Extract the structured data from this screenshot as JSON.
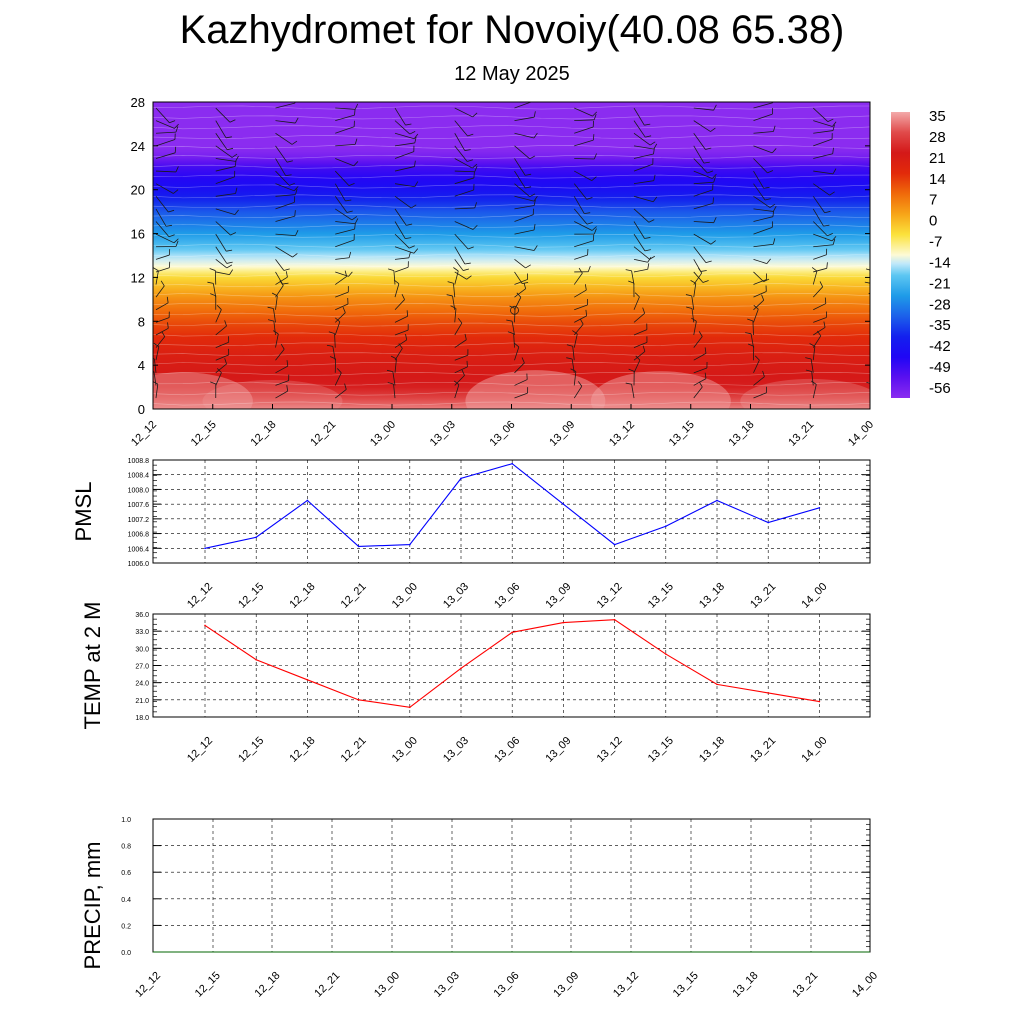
{
  "title": "Kazhydromet for Novoiy(40.08 65.38)",
  "subtitle": "12 May 2025",
  "time_labels": [
    "12_12",
    "12_15",
    "12_18",
    "12_21",
    "13_00",
    "13_03",
    "13_06",
    "13_09",
    "13_12",
    "13_15",
    "13_18",
    "13_21",
    "14_00"
  ],
  "chart_data": [
    {
      "type": "heatmap",
      "title": "",
      "ylabel": "",
      "ylim": [
        0,
        28
      ],
      "y_ticks": [
        "0",
        "4",
        "8",
        "12",
        "16",
        "20",
        "24",
        "28"
      ],
      "x_ticks": [
        "12_12",
        "12_15",
        "12_18",
        "12_21",
        "13_00",
        "13_03",
        "13_06",
        "13_09",
        "13_12",
        "13_15",
        "13_18",
        "13_21",
        "14_00"
      ],
      "colorbar": {
        "labels": [
          "35",
          "28",
          "21",
          "14",
          "7",
          "0",
          "-7",
          "-14",
          "-21",
          "-28",
          "-35",
          "-42",
          "-49",
          "-56"
        ],
        "stops": [
          {
            "v": 35,
            "color": "#f3aaaa"
          },
          {
            "v": 28,
            "color": "#e04a4a"
          },
          {
            "v": 21,
            "color": "#d41818"
          },
          {
            "v": 14,
            "color": "#e22a0a"
          },
          {
            "v": 7,
            "color": "#f06a0a"
          },
          {
            "v": 0,
            "color": "#f7a518"
          },
          {
            "v": -7,
            "color": "#fbe23c"
          },
          {
            "v": -14,
            "color": "#fdfad6"
          },
          {
            "v": -17,
            "color": "#bfe8fa"
          },
          {
            "v": -21,
            "color": "#5cc6f2"
          },
          {
            "v": -28,
            "color": "#1e9be8"
          },
          {
            "v": -35,
            "color": "#1c60ea"
          },
          {
            "v": -42,
            "color": "#1320ee"
          },
          {
            "v": -49,
            "color": "#2006f5"
          },
          {
            "v": -56,
            "color": "#5a10f0"
          },
          {
            "v": -63,
            "color": "#8b2cf0"
          }
        ]
      },
      "temperature_profile": [
        {
          "h": 0,
          "t": 32
        },
        {
          "h": 2,
          "t": 22
        },
        {
          "h": 5,
          "t": 18
        },
        {
          "h": 8,
          "t": 10
        },
        {
          "h": 10,
          "t": 3
        },
        {
          "h": 12,
          "t": -6
        },
        {
          "h": 13,
          "t": -14
        },
        {
          "h": 14,
          "t": -18
        },
        {
          "h": 16,
          "t": -28
        },
        {
          "h": 18,
          "t": -36
        },
        {
          "h": 20,
          "t": -46
        },
        {
          "h": 22,
          "t": -53
        },
        {
          "h": 23,
          "t": -60
        },
        {
          "h": 24,
          "t": -64
        },
        {
          "h": 28,
          "t": -64
        }
      ]
    },
    {
      "type": "line",
      "ylabel": "PMSL",
      "ylim": [
        1006.0,
        1008.8
      ],
      "y_ticks": [
        "1006.0",
        "1006.4",
        "1006.8",
        "1007.2",
        "1007.6",
        "1008.0",
        "1008.4",
        "1008.8"
      ],
      "x": [
        "12_12",
        "12_15",
        "12_18",
        "12_21",
        "13_00",
        "13_03",
        "13_06",
        "13_09",
        "13_12",
        "13_15",
        "13_18",
        "13_21",
        "14_00"
      ],
      "series": [
        {
          "values": [
            1006.4,
            1006.7,
            1007.7,
            1006.45,
            1006.5,
            1008.3,
            1008.7,
            1007.6,
            1006.5,
            1007.0,
            1007.7,
            1007.1,
            1007.5
          ],
          "color": "#0000ff"
        }
      ]
    },
    {
      "type": "line",
      "ylabel": "TEMP at 2 M",
      "ylim": [
        18.0,
        36.0
      ],
      "y_ticks": [
        "18.0",
        "21.0",
        "24.0",
        "27.0",
        "30.0",
        "33.0",
        "36.0"
      ],
      "x": [
        "12_12",
        "12_15",
        "12_18",
        "12_21",
        "13_00",
        "13_03",
        "13_06",
        "13_09",
        "13_12",
        "13_15",
        "13_18",
        "13_21",
        "14_00"
      ],
      "series": [
        {
          "values": [
            34.0,
            28.0,
            24.5,
            21.0,
            19.7,
            26.5,
            32.8,
            34.5,
            35.0,
            29.0,
            23.7,
            22.2,
            20.7
          ],
          "color": "#ff0000"
        }
      ]
    },
    {
      "type": "line",
      "ylabel": "PRECIP, mm",
      "ylim": [
        0.0,
        1.0
      ],
      "y_ticks": [
        "0.0",
        "0.2",
        "0.4",
        "0.6",
        "0.8",
        "1.0"
      ],
      "x": [
        "12_12",
        "12_15",
        "12_18",
        "12_21",
        "13_00",
        "13_03",
        "13_06",
        "13_09",
        "13_12",
        "13_15",
        "13_18",
        "13_21",
        "14_00"
      ],
      "series": [
        {
          "values": [
            0,
            0,
            0,
            0,
            0,
            0,
            0,
            0,
            0,
            0,
            0,
            0,
            0
          ],
          "color": "#006400"
        }
      ]
    }
  ]
}
